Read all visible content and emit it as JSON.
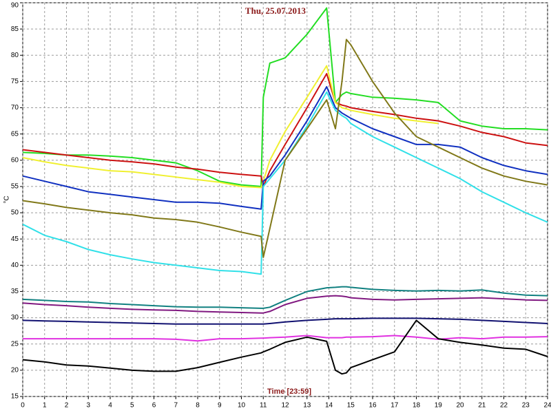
{
  "chart_data": {
    "type": "line",
    "title": "Thu, 25.07.2013",
    "x_label": "Time [23:59]",
    "y_label": "°C",
    "x": [
      0,
      1,
      2,
      3,
      4,
      5,
      6,
      7,
      8,
      9,
      10,
      10.9,
      11,
      11.3,
      12,
      13,
      13.9,
      14.3,
      14.6,
      14.8,
      15,
      16,
      17,
      18,
      19,
      20,
      21,
      22,
      23,
      24
    ],
    "xlim": [
      0,
      24
    ],
    "xticks": [
      0,
      1,
      2,
      3,
      4,
      5,
      6,
      7,
      8,
      9,
      10,
      11,
      12,
      13,
      14,
      15,
      16,
      17,
      18,
      19,
      20,
      21,
      22,
      23,
      24
    ],
    "ylim": [
      15,
      90
    ],
    "yticks": [
      15,
      20,
      25,
      30,
      35,
      40,
      45,
      50,
      55,
      60,
      65,
      70,
      75,
      80,
      85,
      90
    ],
    "grid": true,
    "series": [
      {
        "color": "#22dd22",
        "values": [
          61.5,
          61.3,
          61,
          61,
          60.8,
          60.5,
          60,
          59.5,
          58,
          56,
          55.3,
          55,
          72,
          78.5,
          79.5,
          84,
          89,
          71,
          72.5,
          73,
          72.7,
          72,
          71.8,
          71.5,
          71,
          67.5,
          66.5,
          66,
          66,
          65.8
        ]
      },
      {
        "color": "#cc1111",
        "values": [
          62,
          61.5,
          61,
          60.5,
          60,
          59.7,
          59.3,
          58.7,
          58.3,
          57.7,
          57.3,
          57,
          55,
          58,
          63,
          70,
          76.5,
          71,
          70.5,
          70.3,
          70,
          69.3,
          68.7,
          68,
          67.5,
          66.5,
          65.3,
          64.5,
          63.3,
          62.8
        ]
      },
      {
        "color": "#f0f030",
        "values": [
          60.5,
          59.7,
          59,
          58.5,
          58,
          57.8,
          57.3,
          56.8,
          56.3,
          55.8,
          55,
          54.8,
          56,
          60,
          65.5,
          72,
          78,
          71,
          70,
          69.8,
          69.5,
          68.7,
          68,
          67.5,
          67,
          null,
          null,
          null,
          null,
          null
        ]
      },
      {
        "color": "#1030c0",
        "values": [
          57,
          56,
          55,
          54,
          53.5,
          53,
          52.5,
          52,
          52,
          51.8,
          51.2,
          50.7,
          56,
          57,
          61,
          67.5,
          74,
          70,
          69,
          68.5,
          68,
          66,
          64.5,
          63,
          63,
          62.5,
          60.5,
          59,
          58,
          57.3
        ]
      },
      {
        "color": "#30e0e8",
        "values": [
          47.8,
          45.7,
          44.5,
          43,
          42,
          41.2,
          40.5,
          40,
          39.5,
          39,
          38.8,
          38.3,
          55,
          56.5,
          60,
          66.5,
          73,
          69.5,
          68.5,
          68,
          67,
          64.5,
          62.5,
          60.5,
          58.5,
          56.5,
          54,
          52,
          50,
          48.2
        ]
      },
      {
        "color": "#807818",
        "values": [
          52.3,
          51.7,
          51,
          50.5,
          50,
          49.6,
          49,
          48.7,
          48.2,
          47.3,
          46.3,
          45.5,
          41.5,
          47,
          60,
          66,
          71.5,
          66,
          75,
          83,
          82,
          75,
          69,
          64.5,
          62.5,
          60.5,
          58.5,
          57,
          56,
          55.3
        ]
      },
      {
        "color": "#108080",
        "values": [
          33.5,
          33.3,
          33.1,
          33,
          32.7,
          32.5,
          32.3,
          32.1,
          32,
          32,
          31.9,
          31.8,
          31.8,
          32,
          33.3,
          35,
          35.7,
          35.8,
          35.9,
          35.9,
          35.8,
          35.4,
          35.2,
          35.1,
          35.2,
          35.1,
          35.3,
          34.7,
          34.3,
          34.2
        ]
      },
      {
        "color": "#801880",
        "values": [
          32.8,
          32.5,
          32.3,
          32,
          31.8,
          31.6,
          31.5,
          31.4,
          31.2,
          31.1,
          31,
          30.9,
          30.9,
          31.2,
          32.5,
          33.7,
          34.1,
          34.2,
          34.1,
          34,
          33.8,
          33.5,
          33.4,
          33.5,
          33.6,
          33.7,
          33.8,
          33.6,
          33.4,
          33.3
        ]
      },
      {
        "color": "#101070",
        "values": [
          29.5,
          29.4,
          29.3,
          29.2,
          29.1,
          29,
          28.9,
          28.8,
          28.8,
          28.8,
          28.8,
          28.8,
          28.8,
          28.9,
          29.2,
          29.5,
          29.7,
          29.8,
          29.8,
          29.8,
          29.8,
          29.9,
          29.9,
          29.9,
          29.8,
          29.7,
          29.5,
          29.3,
          29.1,
          28.9
        ]
      },
      {
        "color": "#e030e0",
        "values": [
          26,
          26,
          26,
          26,
          26,
          26,
          26,
          25.9,
          25.6,
          26,
          26,
          26.1,
          26.1,
          26.2,
          26.3,
          26.6,
          26.2,
          26.2,
          26.2,
          26.3,
          26.3,
          26.4,
          26.6,
          26.3,
          25.9,
          26.2,
          26,
          26.3,
          26.3,
          26.4
        ]
      },
      {
        "color": "#000000",
        "values": [
          22,
          21.6,
          21,
          20.8,
          20.4,
          20,
          19.8,
          19.8,
          20.5,
          21.5,
          22.5,
          23.3,
          23.5,
          24,
          25.3,
          26.3,
          25.5,
          20,
          19.3,
          19.5,
          20.5,
          22,
          23.5,
          29.5,
          26,
          25.3,
          24.8,
          24.2,
          24,
          22.6
        ]
      }
    ]
  }
}
